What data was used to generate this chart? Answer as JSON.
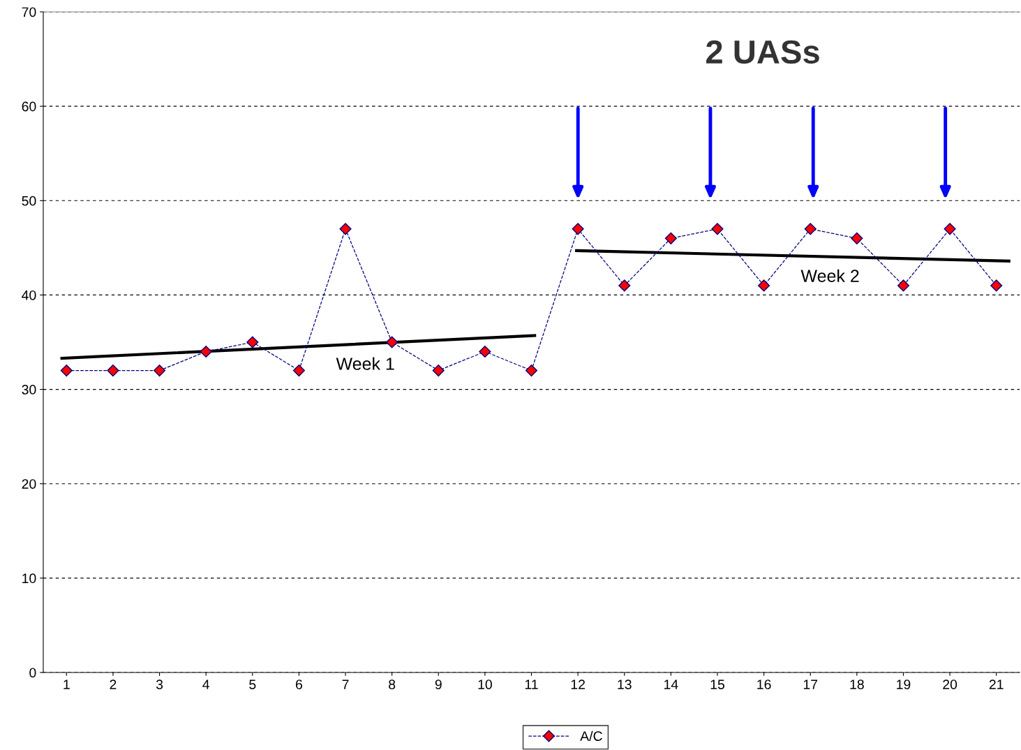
{
  "chart_data": {
    "type": "line",
    "x": [
      1,
      2,
      3,
      4,
      5,
      6,
      7,
      8,
      9,
      10,
      11,
      12,
      13,
      14,
      15,
      16,
      17,
      18,
      19,
      20,
      21
    ],
    "xlim": [
      0.5,
      21.5
    ],
    "xticks": [
      1,
      2,
      3,
      4,
      5,
      6,
      7,
      8,
      9,
      10,
      11,
      12,
      13,
      14,
      15,
      16,
      17,
      18,
      19,
      20,
      21
    ],
    "ylim": [
      0,
      70
    ],
    "yticks": [
      0,
      10,
      20,
      30,
      40,
      50,
      60,
      70
    ],
    "grid": "y",
    "legend": "bottom",
    "series": [
      {
        "name": "A/C",
        "color": "#ff0000",
        "marker": "diamond",
        "line_style": "dashed",
        "values": [
          32,
          32,
          32,
          34,
          35,
          32,
          47,
          35,
          32,
          34,
          32,
          47,
          41,
          46,
          47,
          41,
          47,
          46,
          41,
          47,
          41
        ]
      },
      {
        "type": "line",
        "color": "#000000",
        "line_style": "solid",
        "x": [
          0.9,
          11.07
        ],
        "values": [
          33.3,
          35.7
        ]
      },
      {
        "type": "line",
        "color": "#000000",
        "line_style": "solid",
        "x": [
          11.97,
          21.27
        ],
        "values": [
          44.7,
          43.6
        ]
      }
    ],
    "annotations": [
      "2 UASs",
      "Week 1",
      "Week 2"
    ]
  }
}
